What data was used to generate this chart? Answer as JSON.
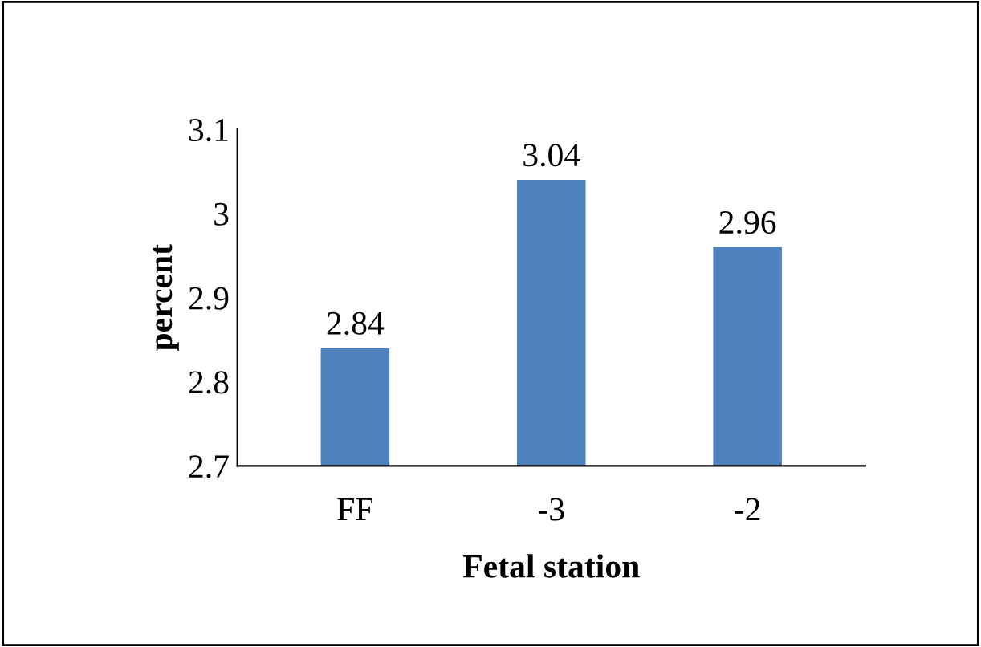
{
  "chart_data": {
    "type": "bar",
    "xlabel": "Fetal station",
    "ylabel": "percent",
    "categories": [
      "FF",
      "-3",
      "-2"
    ],
    "values": [
      2.84,
      3.04,
      2.96
    ],
    "color": "#4f81bd",
    "ylim": [
      2.7,
      3.1
    ],
    "yticks": [
      2.7,
      2.8,
      2.9,
      3,
      3.1
    ],
    "grid": false,
    "data_labels": true
  }
}
